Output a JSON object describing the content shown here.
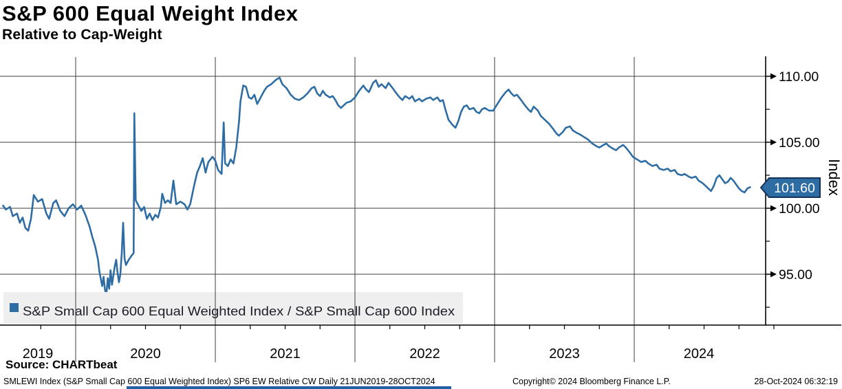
{
  "header": {
    "title": "S&P 600 Equal Weight Index",
    "subtitle": "Relative to Cap-Weight"
  },
  "chart_data": {
    "type": "line",
    "title": "S&P 600 Equal Weight Index — Relative to Cap-Weight",
    "xlabel": "",
    "ylabel": "Index",
    "grid": true,
    "legend_position": "bottom-left",
    "legend_text": "S&P Small Cap 600 Equal Weighted Index / S&P Small Cap 600 Index",
    "last_value": 101.6,
    "last_value_label": "101.60",
    "x_axis": {
      "ticks": [
        "2019",
        "2020",
        "2021",
        "2022",
        "2023",
        "2024"
      ],
      "range_years": [
        2019.47,
        2024.83
      ],
      "minor_tick_interval_years": 0.25
    },
    "y_axis": {
      "ticks": [
        {
          "value": 110,
          "label": "110.00"
        },
        {
          "value": 105,
          "label": "105.00"
        },
        {
          "value": 100,
          "label": "100.00"
        },
        {
          "value": 95,
          "label": "95.00"
        }
      ],
      "minor_tick_values": [
        107.5,
        102.5,
        97.5,
        92.5
      ],
      "ylim": [
        91.2,
        111.5
      ]
    },
    "series": [
      {
        "name": "S&P Small Cap 600 Equal Weighted Index / S&P Small Cap 600 Index",
        "points": [
          [
            2019.48,
            100.2
          ],
          [
            2019.5,
            99.9
          ],
          [
            2019.53,
            100.1
          ],
          [
            2019.55,
            99.4
          ],
          [
            2019.58,
            99.6
          ],
          [
            2019.6,
            98.9
          ],
          [
            2019.62,
            99.3
          ],
          [
            2019.64,
            98.5
          ],
          [
            2019.66,
            98.3
          ],
          [
            2019.68,
            99.2
          ],
          [
            2019.7,
            101.0
          ],
          [
            2019.73,
            100.5
          ],
          [
            2019.76,
            100.7
          ],
          [
            2019.79,
            99.6
          ],
          [
            2019.81,
            99.2
          ],
          [
            2019.84,
            100.4
          ],
          [
            2019.86,
            100.6
          ],
          [
            2019.89,
            99.8
          ],
          [
            2019.92,
            99.4
          ],
          [
            2019.95,
            100.0
          ],
          [
            2019.98,
            100.3
          ],
          [
            2020.01,
            99.9
          ],
          [
            2020.04,
            100.2
          ],
          [
            2020.07,
            99.5
          ],
          [
            2020.1,
            98.6
          ],
          [
            2020.12,
            97.8
          ],
          [
            2020.14,
            97.1
          ],
          [
            2020.16,
            96.1
          ],
          [
            2020.17,
            95.2
          ],
          [
            2020.19,
            94.1
          ],
          [
            2020.2,
            94.8
          ],
          [
            2020.21,
            93.8
          ],
          [
            2020.22,
            93.5
          ],
          [
            2020.23,
            94.7
          ],
          [
            2020.24,
            93.9
          ],
          [
            2020.25,
            95.3
          ],
          [
            2020.26,
            94.2
          ],
          [
            2020.28,
            95.6
          ],
          [
            2020.29,
            96.1
          ],
          [
            2020.3,
            95.1
          ],
          [
            2020.31,
            94.4
          ],
          [
            2020.32,
            95.0
          ],
          [
            2020.33,
            96.6
          ],
          [
            2020.34,
            98.9
          ],
          [
            2020.35,
            96.2
          ],
          [
            2020.36,
            95.7
          ],
          [
            2020.38,
            96.1
          ],
          [
            2020.4,
            96.4
          ],
          [
            2020.415,
            96.6
          ],
          [
            2020.42,
            107.2
          ],
          [
            2020.43,
            100.6
          ],
          [
            2020.45,
            100.2
          ],
          [
            2020.47,
            99.8
          ],
          [
            2020.49,
            100.1
          ],
          [
            2020.51,
            99.2
          ],
          [
            2020.53,
            99.6
          ],
          [
            2020.55,
            99.1
          ],
          [
            2020.57,
            99.5
          ],
          [
            2020.59,
            99.3
          ],
          [
            2020.61,
            100.1
          ],
          [
            2020.62,
            101.1
          ],
          [
            2020.64,
            100.4
          ],
          [
            2020.66,
            100.6
          ],
          [
            2020.68,
            100.4
          ],
          [
            2020.7,
            102.1
          ],
          [
            2020.72,
            100.3
          ],
          [
            2020.75,
            100.5
          ],
          [
            2020.78,
            100.3
          ],
          [
            2020.8,
            99.9
          ],
          [
            2020.82,
            100.3
          ],
          [
            2020.85,
            101.8
          ],
          [
            2020.87,
            102.7
          ],
          [
            2020.89,
            103.2
          ],
          [
            2020.91,
            103.8
          ],
          [
            2020.93,
            102.7
          ],
          [
            2020.95,
            103.5
          ],
          [
            2020.98,
            103.9
          ],
          [
            2021.0,
            103.6
          ],
          [
            2021.02,
            102.9
          ],
          [
            2021.045,
            102.6
          ],
          [
            2021.06,
            106.5
          ],
          [
            2021.07,
            103.4
          ],
          [
            2021.09,
            103.2
          ],
          [
            2021.11,
            103.7
          ],
          [
            2021.13,
            103.4
          ],
          [
            2021.15,
            104.6
          ],
          [
            2021.17,
            106.6
          ],
          [
            2021.18,
            108.1
          ],
          [
            2021.2,
            109.3
          ],
          [
            2021.22,
            109.2
          ],
          [
            2021.24,
            108.4
          ],
          [
            2021.26,
            108.3
          ],
          [
            2021.28,
            108.6
          ],
          [
            2021.3,
            107.9
          ],
          [
            2021.32,
            108.3
          ],
          [
            2021.35,
            108.9
          ],
          [
            2021.37,
            109.2
          ],
          [
            2021.4,
            109.4
          ],
          [
            2021.43,
            109.7
          ],
          [
            2021.46,
            109.9
          ],
          [
            2021.48,
            109.4
          ],
          [
            2021.51,
            109.1
          ],
          [
            2021.54,
            108.6
          ],
          [
            2021.57,
            108.3
          ],
          [
            2021.6,
            108.2
          ],
          [
            2021.63,
            108.4
          ],
          [
            2021.66,
            108.7
          ],
          [
            2021.69,
            109.1
          ],
          [
            2021.71,
            109.2
          ],
          [
            2021.73,
            108.7
          ],
          [
            2021.75,
            108.5
          ],
          [
            2021.77,
            108.9
          ],
          [
            2021.79,
            108.6
          ],
          [
            2021.82,
            108.4
          ],
          [
            2021.84,
            108.5
          ],
          [
            2021.86,
            108.2
          ],
          [
            2021.88,
            107.8
          ],
          [
            2021.9,
            107.6
          ],
          [
            2021.92,
            107.8
          ],
          [
            2021.94,
            108.0
          ],
          [
            2021.97,
            108.1
          ],
          [
            2022.0,
            108.4
          ],
          [
            2022.03,
            108.9
          ],
          [
            2022.06,
            109.3
          ],
          [
            2022.08,
            109.0
          ],
          [
            2022.1,
            108.8
          ],
          [
            2022.13,
            109.5
          ],
          [
            2022.15,
            109.7
          ],
          [
            2022.17,
            109.2
          ],
          [
            2022.19,
            109.4
          ],
          [
            2022.22,
            109.1
          ],
          [
            2022.24,
            109.5
          ],
          [
            2022.27,
            109.1
          ],
          [
            2022.29,
            108.8
          ],
          [
            2022.32,
            108.4
          ],
          [
            2022.34,
            108.2
          ],
          [
            2022.36,
            108.5
          ],
          [
            2022.39,
            108.3
          ],
          [
            2022.41,
            108.5
          ],
          [
            2022.43,
            108.1
          ],
          [
            2022.46,
            108.3
          ],
          [
            2022.48,
            108.1
          ],
          [
            2022.51,
            108.3
          ],
          [
            2022.54,
            108.4
          ],
          [
            2022.56,
            108.2
          ],
          [
            2022.59,
            108.4
          ],
          [
            2022.61,
            108.1
          ],
          [
            2022.63,
            108.2
          ],
          [
            2022.65,
            107.4
          ],
          [
            2022.67,
            106.7
          ],
          [
            2022.7,
            106.3
          ],
          [
            2022.72,
            106.1
          ],
          [
            2022.74,
            106.6
          ],
          [
            2022.76,
            107.3
          ],
          [
            2022.78,
            107.7
          ],
          [
            2022.8,
            107.8
          ],
          [
            2022.82,
            107.5
          ],
          [
            2022.85,
            107.6
          ],
          [
            2022.87,
            107.3
          ],
          [
            2022.89,
            107.2
          ],
          [
            2022.91,
            107.5
          ],
          [
            2022.93,
            107.6
          ],
          [
            2022.96,
            107.4
          ],
          [
            2022.99,
            107.4
          ],
          [
            2023.02,
            107.9
          ],
          [
            2023.05,
            108.4
          ],
          [
            2023.08,
            108.8
          ],
          [
            2023.1,
            109.0
          ],
          [
            2023.12,
            108.7
          ],
          [
            2023.14,
            108.5
          ],
          [
            2023.16,
            108.6
          ],
          [
            2023.19,
            108.2
          ],
          [
            2023.21,
            107.9
          ],
          [
            2023.24,
            107.5
          ],
          [
            2023.26,
            107.3
          ],
          [
            2023.28,
            107.7
          ],
          [
            2023.31,
            107.4
          ],
          [
            2023.33,
            107.0
          ],
          [
            2023.36,
            106.7
          ],
          [
            2023.39,
            106.4
          ],
          [
            2023.42,
            106.0
          ],
          [
            2023.44,
            105.7
          ],
          [
            2023.46,
            105.5
          ],
          [
            2023.49,
            105.8
          ],
          [
            2023.51,
            106.1
          ],
          [
            2023.54,
            106.2
          ],
          [
            2023.56,
            105.9
          ],
          [
            2023.59,
            105.7
          ],
          [
            2023.61,
            105.6
          ],
          [
            2023.64,
            105.4
          ],
          [
            2023.67,
            105.2
          ],
          [
            2023.7,
            104.9
          ],
          [
            2023.73,
            104.7
          ],
          [
            2023.75,
            104.6
          ],
          [
            2023.78,
            104.8
          ],
          [
            2023.8,
            104.9
          ],
          [
            2023.82,
            104.7
          ],
          [
            2023.85,
            104.5
          ],
          [
            2023.87,
            104.4
          ],
          [
            2023.89,
            104.6
          ],
          [
            2023.92,
            104.8
          ],
          [
            2023.94,
            104.6
          ],
          [
            2023.97,
            104.2
          ],
          [
            2023.99,
            103.9
          ],
          [
            2024.02,
            103.7
          ],
          [
            2024.05,
            103.5
          ],
          [
            2024.08,
            103.6
          ],
          [
            2024.1,
            103.4
          ],
          [
            2024.13,
            103.2
          ],
          [
            2024.16,
            103.3
          ],
          [
            2024.18,
            103.0
          ],
          [
            2024.21,
            102.9
          ],
          [
            2024.24,
            103.0
          ],
          [
            2024.26,
            102.8
          ],
          [
            2024.29,
            102.9
          ],
          [
            2024.31,
            102.6
          ],
          [
            2024.34,
            102.5
          ],
          [
            2024.36,
            102.6
          ],
          [
            2024.39,
            102.4
          ],
          [
            2024.41,
            102.3
          ],
          [
            2024.44,
            102.4
          ],
          [
            2024.46,
            102.1
          ],
          [
            2024.49,
            101.9
          ],
          [
            2024.51,
            101.7
          ],
          [
            2024.53,
            101.5
          ],
          [
            2024.55,
            101.3
          ],
          [
            2024.57,
            101.7
          ],
          [
            2024.59,
            102.3
          ],
          [
            2024.61,
            102.5
          ],
          [
            2024.63,
            102.2
          ],
          [
            2024.65,
            101.9
          ],
          [
            2024.67,
            102.0
          ],
          [
            2024.69,
            102.3
          ],
          [
            2024.71,
            102.1
          ],
          [
            2024.73,
            101.8
          ],
          [
            2024.75,
            101.5
          ],
          [
            2024.77,
            101.3
          ],
          [
            2024.79,
            101.2
          ],
          [
            2024.81,
            101.5
          ],
          [
            2024.83,
            101.6
          ]
        ]
      }
    ]
  },
  "source": {
    "label": "Source: CHARTbeat"
  },
  "footer": {
    "left": "SMLEWI Index (S&P Small Cap 600 Equal Weighted Index) SP6 EW Relative CW  Daily 21JUN2019-28OCT2024",
    "center": "Copyright© 2024 Bloomberg Finance L.P.",
    "right": "28-Oct-2024 06:32:19"
  },
  "colors": {
    "line": "#2e6da4",
    "badge_fill": "#2e6da4",
    "badge_border": "#14325a",
    "badge_text": "#ffffff",
    "grid": "#3d3d3d",
    "axis": "#000000",
    "legend_bg": "#efefef",
    "legend_text": "#1d1d28",
    "text": "#000000",
    "bottom_bar": "#2460a5"
  }
}
